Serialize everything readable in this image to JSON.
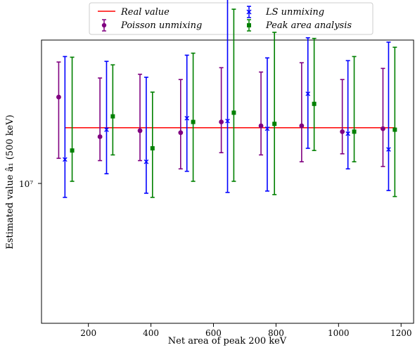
{
  "chart_data": {
    "type": "errorbar",
    "xlabel": "Net area of peak 200 keV",
    "ylabel": "Estimated value â₁ (500 keV)",
    "xlim": [
      50,
      1240
    ],
    "ylim_log10": [
      6.565,
      7.195
    ],
    "yscale": "log",
    "x_ticks": [
      200,
      400,
      600,
      800,
      1000,
      1200
    ],
    "y_tick_label": "10⁷",
    "y_tick_value": 10000000,
    "real_value": {
      "name": "Real value",
      "value": 10000000,
      "x_range": [
        125,
        1182
      ],
      "color": "#ff0000"
    },
    "legend_position": "top-center, above plot",
    "series": [
      {
        "name": "Poisson unmixing",
        "marker": "circle",
        "color": "#800080",
        "points": [
          {
            "x": 105,
            "y": 11700000,
            "ylow": 8550000,
            "yhigh": 14000000
          },
          {
            "x": 237,
            "y": 9550000,
            "ylow": 8450000,
            "yhigh": 12900000
          },
          {
            "x": 365,
            "y": 9850000,
            "ylow": 8450000,
            "yhigh": 13150000
          },
          {
            "x": 495,
            "y": 9750000,
            "ylow": 8100000,
            "yhigh": 12800000
          },
          {
            "x": 625,
            "y": 10300000,
            "ylow": 8800000,
            "yhigh": 13600000
          },
          {
            "x": 752,
            "y": 10100000,
            "ylow": 8700000,
            "yhigh": 13300000
          },
          {
            "x": 882,
            "y": 10100000,
            "ylow": 8400000,
            "yhigh": 13950000
          },
          {
            "x": 1012,
            "y": 9800000,
            "ylow": 8750000,
            "yhigh": 12800000
          },
          {
            "x": 1142,
            "y": 9950000,
            "ylow": 8200000,
            "yhigh": 13550000
          }
        ]
      },
      {
        "name": "LS unmixing",
        "marker": "x",
        "color": "#0000ff",
        "points": [
          {
            "x": 125,
            "y": 8500000,
            "ylow": 7000000,
            "yhigh": 14400000
          },
          {
            "x": 258,
            "y": 9900000,
            "ylow": 7900000,
            "yhigh": 14050000
          },
          {
            "x": 385,
            "y": 8400000,
            "ylow": 7150000,
            "yhigh": 12950000
          },
          {
            "x": 515,
            "y": 10500000,
            "ylow": 8000000,
            "yhigh": 14500000
          },
          {
            "x": 645,
            "y": 10350000,
            "ylow": 7180000,
            "yhigh": 19900000
          },
          {
            "x": 772,
            "y": 9950000,
            "ylow": 7230000,
            "yhigh": 14300000
          },
          {
            "x": 902,
            "y": 11900000,
            "ylow": 9000000,
            "yhigh": 15850000
          },
          {
            "x": 1030,
            "y": 9700000,
            "ylow": 8100000,
            "yhigh": 14100000
          },
          {
            "x": 1160,
            "y": 8950000,
            "ylow": 7250000,
            "yhigh": 15500000
          }
        ]
      },
      {
        "name": "Peak area analysis",
        "marker": "square",
        "color": "#008000",
        "points": [
          {
            "x": 148,
            "y": 8900000,
            "ylow": 7600000,
            "yhigh": 14350000
          },
          {
            "x": 278,
            "y": 10600000,
            "ylow": 8700000,
            "yhigh": 13800000
          },
          {
            "x": 405,
            "y": 9000000,
            "ylow": 7000000,
            "yhigh": 12000000
          },
          {
            "x": 535,
            "y": 10300000,
            "ylow": 7600000,
            "yhigh": 14650000
          },
          {
            "x": 665,
            "y": 10800000,
            "ylow": 7600000,
            "yhigh": 18350000
          },
          {
            "x": 795,
            "y": 10200000,
            "ylow": 7100000,
            "yhigh": 16300000
          },
          {
            "x": 922,
            "y": 11300000,
            "ylow": 8900000,
            "yhigh": 15800000
          },
          {
            "x": 1050,
            "y": 9800000,
            "ylow": 8400000,
            "yhigh": 14400000
          },
          {
            "x": 1180,
            "y": 9900000,
            "ylow": 7030000,
            "yhigh": 15100000
          }
        ]
      }
    ]
  }
}
